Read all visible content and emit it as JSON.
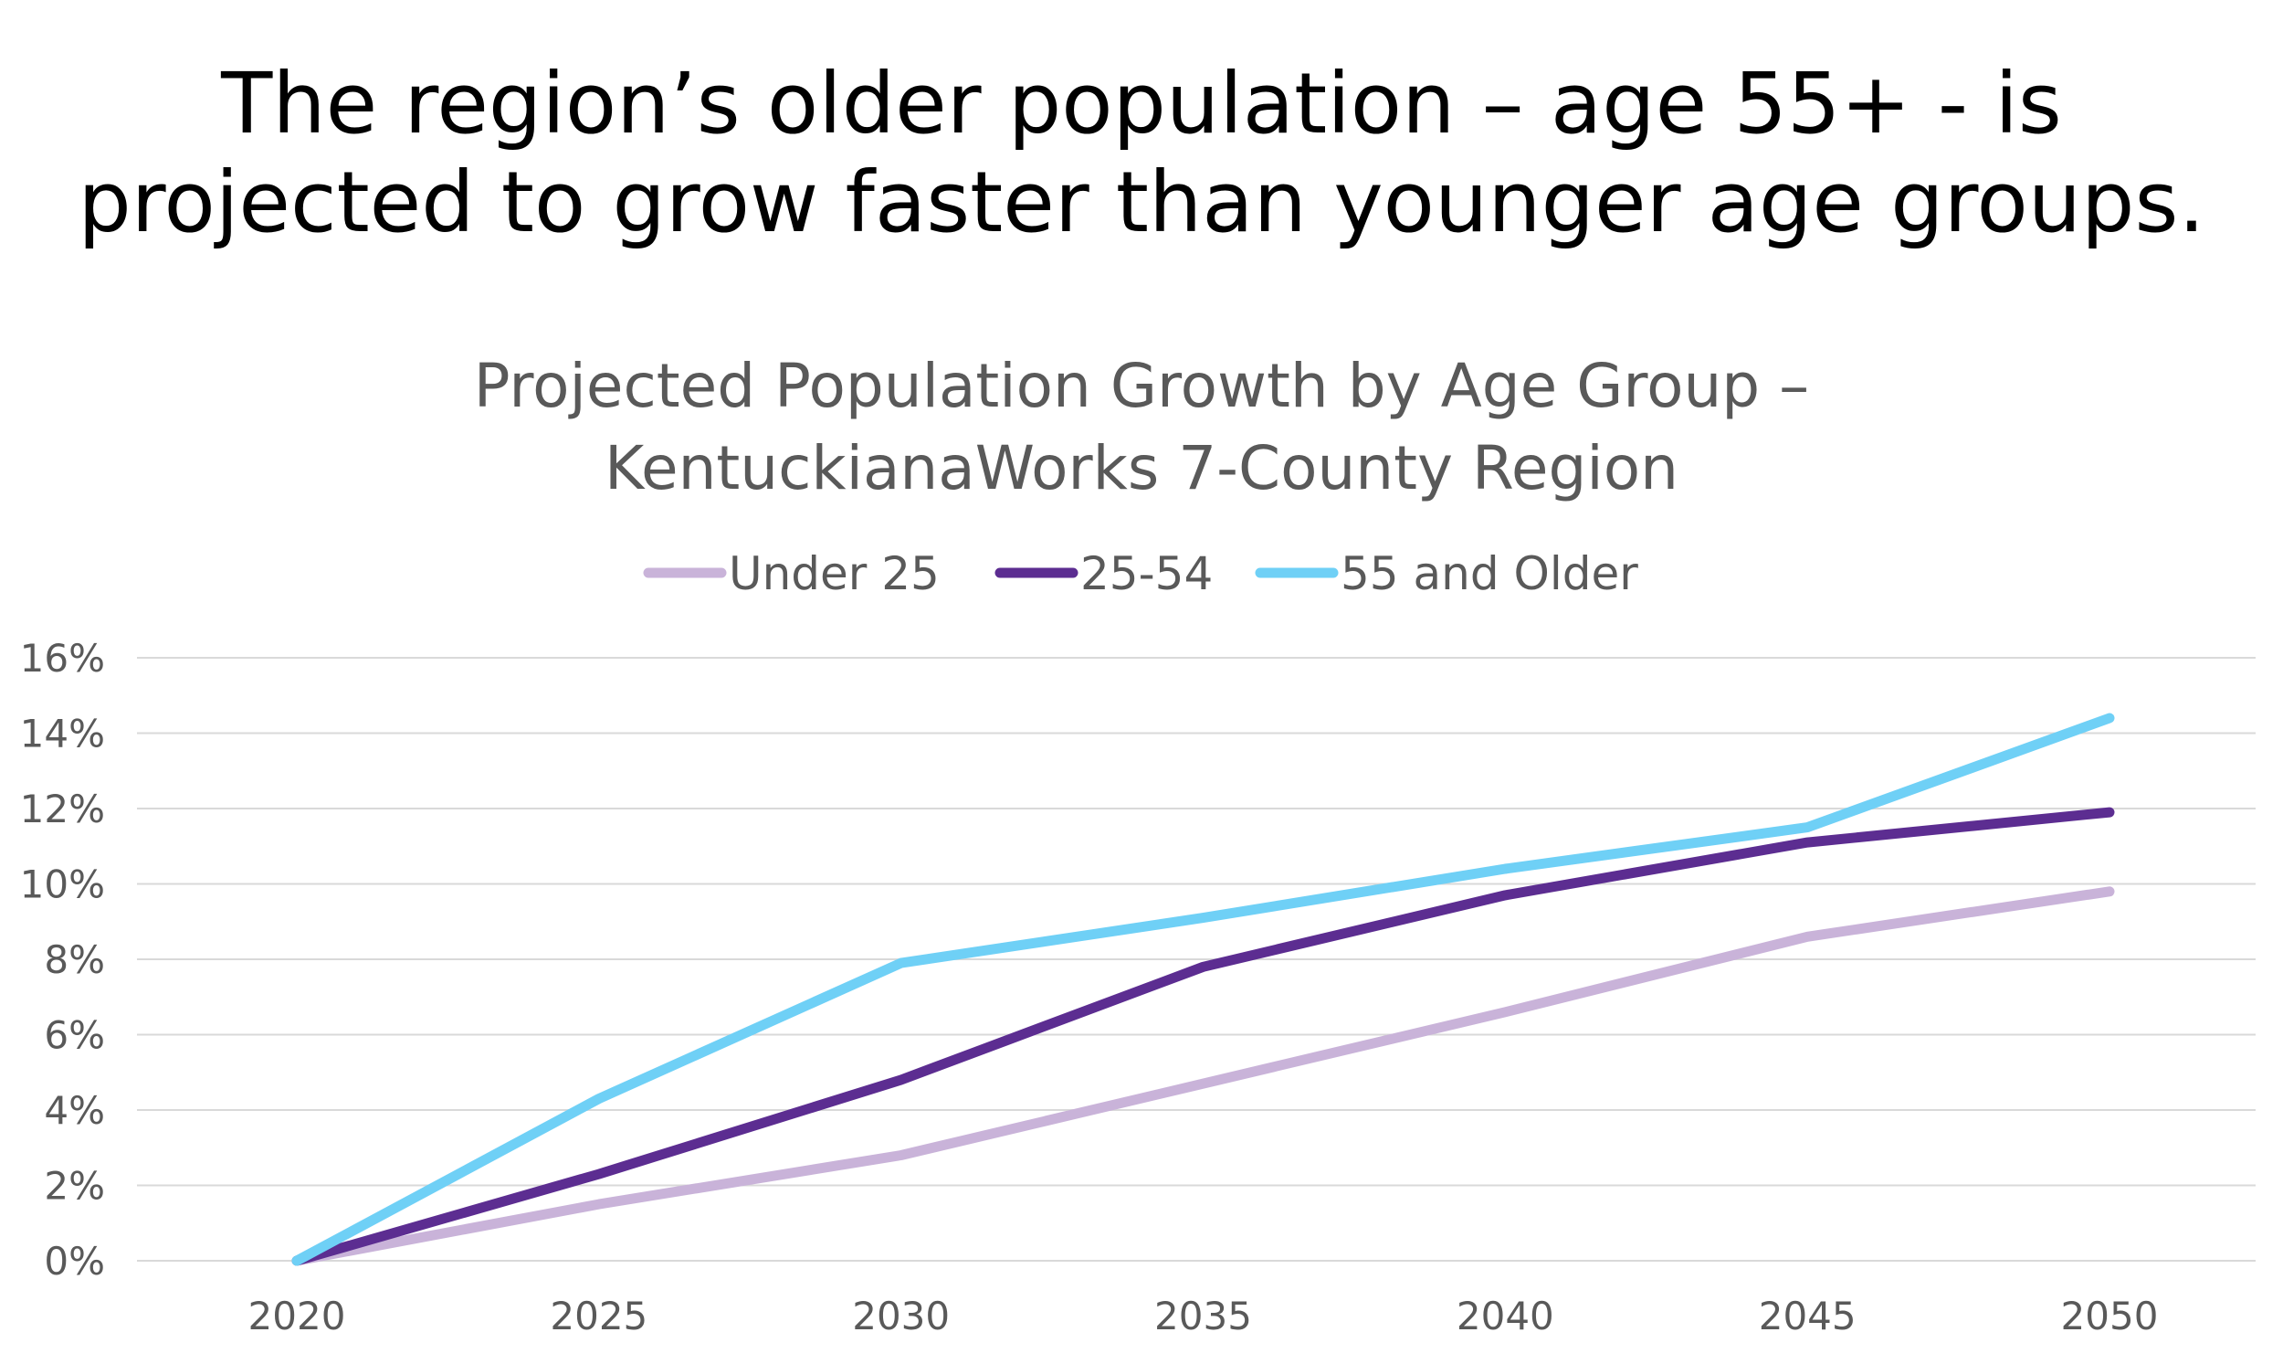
{
  "headline": {
    "line1": "The region’s older population – age 55+ - is",
    "line2": "projected to grow faster than younger age groups."
  },
  "chart_data": {
    "type": "line",
    "title": "Projected Population Growth by Age Group – KentuckianaWorks 7-County Region",
    "title_lines": [
      "Projected Population Growth by Age Group –",
      "KentuckianaWorks 7-County Region"
    ],
    "xlabel": "",
    "ylabel": "",
    "categories": [
      "2020",
      "2025",
      "2030",
      "2035",
      "2040",
      "2045",
      "2050"
    ],
    "y_ticks": [
      "0%",
      "2%",
      "4%",
      "6%",
      "8%",
      "10%",
      "12%",
      "14%",
      "16%"
    ],
    "ylim": [
      0,
      16
    ],
    "grid": true,
    "legend_position": "top-center",
    "series": [
      {
        "name": "Under 25",
        "color": "#c9b3d9",
        "values": [
          0,
          1.5,
          2.8,
          4.7,
          6.6,
          8.6,
          9.8
        ]
      },
      {
        "name": "25-54",
        "color": "#5c2d91",
        "values": [
          0,
          2.3,
          4.8,
          7.8,
          9.7,
          11.1,
          11.9
        ]
      },
      {
        "name": "55 and Older",
        "color": "#6fd0f6",
        "values": [
          0,
          4.3,
          7.9,
          9.1,
          10.4,
          11.5,
          14.4
        ]
      }
    ]
  }
}
